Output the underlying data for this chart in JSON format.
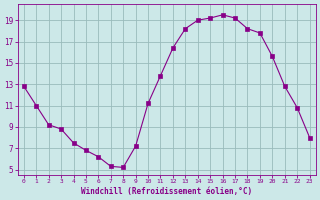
{
  "x": [
    0,
    1,
    2,
    3,
    4,
    5,
    6,
    7,
    8,
    9,
    10,
    11,
    12,
    13,
    14,
    15,
    16,
    17,
    18,
    19,
    20,
    21,
    22,
    23
  ],
  "y": [
    12.8,
    11.0,
    9.2,
    8.8,
    7.5,
    6.8,
    6.2,
    5.3,
    5.2,
    7.2,
    11.2,
    13.8,
    16.4,
    18.2,
    19.0,
    19.2,
    19.5,
    19.2,
    18.2,
    17.8,
    15.6,
    12.8,
    10.8,
    8.0
  ],
  "line_color": "#880088",
  "marker": "s",
  "marker_size": 2.5,
  "bg_color": "#cce8e8",
  "grid_color": "#99bbbb",
  "xlabel": "Windchill (Refroidissement éolien,°C)",
  "xlabel_color": "#880088",
  "tick_color": "#880088",
  "ylabel_ticks": [
    5,
    7,
    9,
    11,
    13,
    15,
    17,
    19
  ],
  "xlim": [
    -0.5,
    23.5
  ],
  "ylim": [
    4.5,
    20.5
  ],
  "xtick_labels": [
    "0",
    "1",
    "2",
    "3",
    "4",
    "5",
    "6",
    "7",
    "8",
    "9",
    "10",
    "11",
    "12",
    "13",
    "14",
    "15",
    "16",
    "17",
    "18",
    "19",
    "20",
    "21",
    "22",
    "23"
  ]
}
